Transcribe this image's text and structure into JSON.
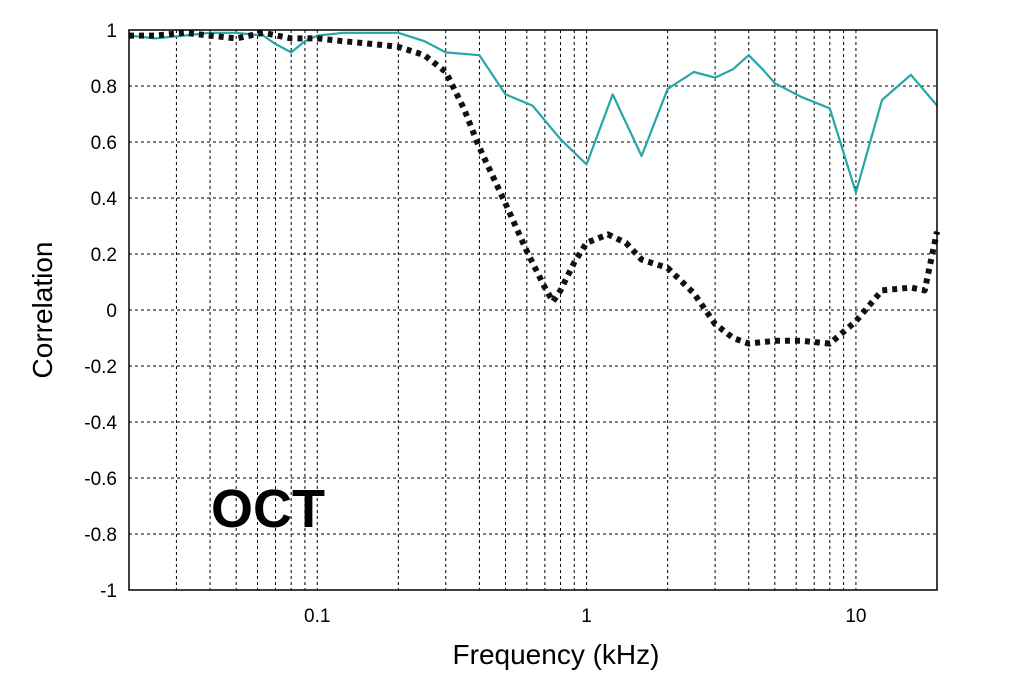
{
  "chart_data": {
    "type": "line",
    "title": "",
    "xlabel": "Frequency (kHz)",
    "ylabel": "Correlation",
    "xscale": "log",
    "xlim": [
      0.02,
      20
    ],
    "ylim": [
      -1,
      1
    ],
    "grid": true,
    "x_tick_labels": [
      {
        "value": 0.1,
        "label": "0.1"
      },
      {
        "value": 1,
        "label": "1"
      },
      {
        "value": 10,
        "label": "10"
      }
    ],
    "y_tick_labels": [
      {
        "value": 1,
        "label": "1"
      },
      {
        "value": 0.8,
        "label": "0.8"
      },
      {
        "value": 0.6,
        "label": "0.6"
      },
      {
        "value": 0.4,
        "label": "0.4"
      },
      {
        "value": 0.2,
        "label": "0.2"
      },
      {
        "value": 0,
        "label": "0"
      },
      {
        "value": -0.2,
        "label": "-0.2"
      },
      {
        "value": -0.4,
        "label": "-0.4"
      },
      {
        "value": -0.6,
        "label": "-0.6"
      },
      {
        "value": -0.8,
        "label": "-0.8"
      },
      {
        "value": -1,
        "label": "-1"
      }
    ],
    "annotation": "OCT",
    "series": [
      {
        "color": "#26a6a6",
        "style": "solid",
        "x": [
          0.02,
          0.025,
          0.032,
          0.04,
          0.05,
          0.063,
          0.07,
          0.08,
          0.09,
          0.1,
          0.125,
          0.16,
          0.2,
          0.25,
          0.3,
          0.4,
          0.5,
          0.63,
          0.8,
          1.0,
          1.25,
          1.6,
          2.0,
          2.5,
          3.0,
          3.5,
          4.0,
          4.5,
          5.0,
          6.3,
          8.0,
          10.0,
          12.5,
          16.0,
          20.0
        ],
        "y": [
          0.98,
          0.97,
          0.98,
          0.99,
          0.99,
          0.98,
          0.95,
          0.92,
          0.96,
          0.98,
          0.99,
          0.99,
          0.99,
          0.96,
          0.92,
          0.91,
          0.77,
          0.73,
          0.61,
          0.52,
          0.77,
          0.55,
          0.79,
          0.85,
          0.83,
          0.86,
          0.91,
          0.86,
          0.81,
          0.76,
          0.72,
          0.42,
          0.75,
          0.84,
          0.73
        ]
      },
      {
        "color": "#111111",
        "style": "dotted",
        "x": [
          0.02,
          0.025,
          0.032,
          0.04,
          0.05,
          0.063,
          0.08,
          0.1,
          0.125,
          0.16,
          0.2,
          0.25,
          0.3,
          0.35,
          0.4,
          0.5,
          0.6,
          0.7,
          0.75,
          0.8,
          0.9,
          1.0,
          1.2,
          1.4,
          1.6,
          2.0,
          2.5,
          3.0,
          3.5,
          4.0,
          5.0,
          6.3,
          8.0,
          10.0,
          12.5,
          16.0,
          18.0,
          20.0
        ],
        "y": [
          0.98,
          0.98,
          0.99,
          0.98,
          0.97,
          0.99,
          0.97,
          0.97,
          0.96,
          0.95,
          0.94,
          0.91,
          0.85,
          0.72,
          0.58,
          0.38,
          0.21,
          0.08,
          0.03,
          0.07,
          0.17,
          0.24,
          0.27,
          0.24,
          0.18,
          0.15,
          0.06,
          -0.05,
          -0.1,
          -0.12,
          -0.11,
          -0.11,
          -0.12,
          -0.04,
          0.07,
          0.08,
          0.07,
          0.28
        ]
      }
    ]
  }
}
